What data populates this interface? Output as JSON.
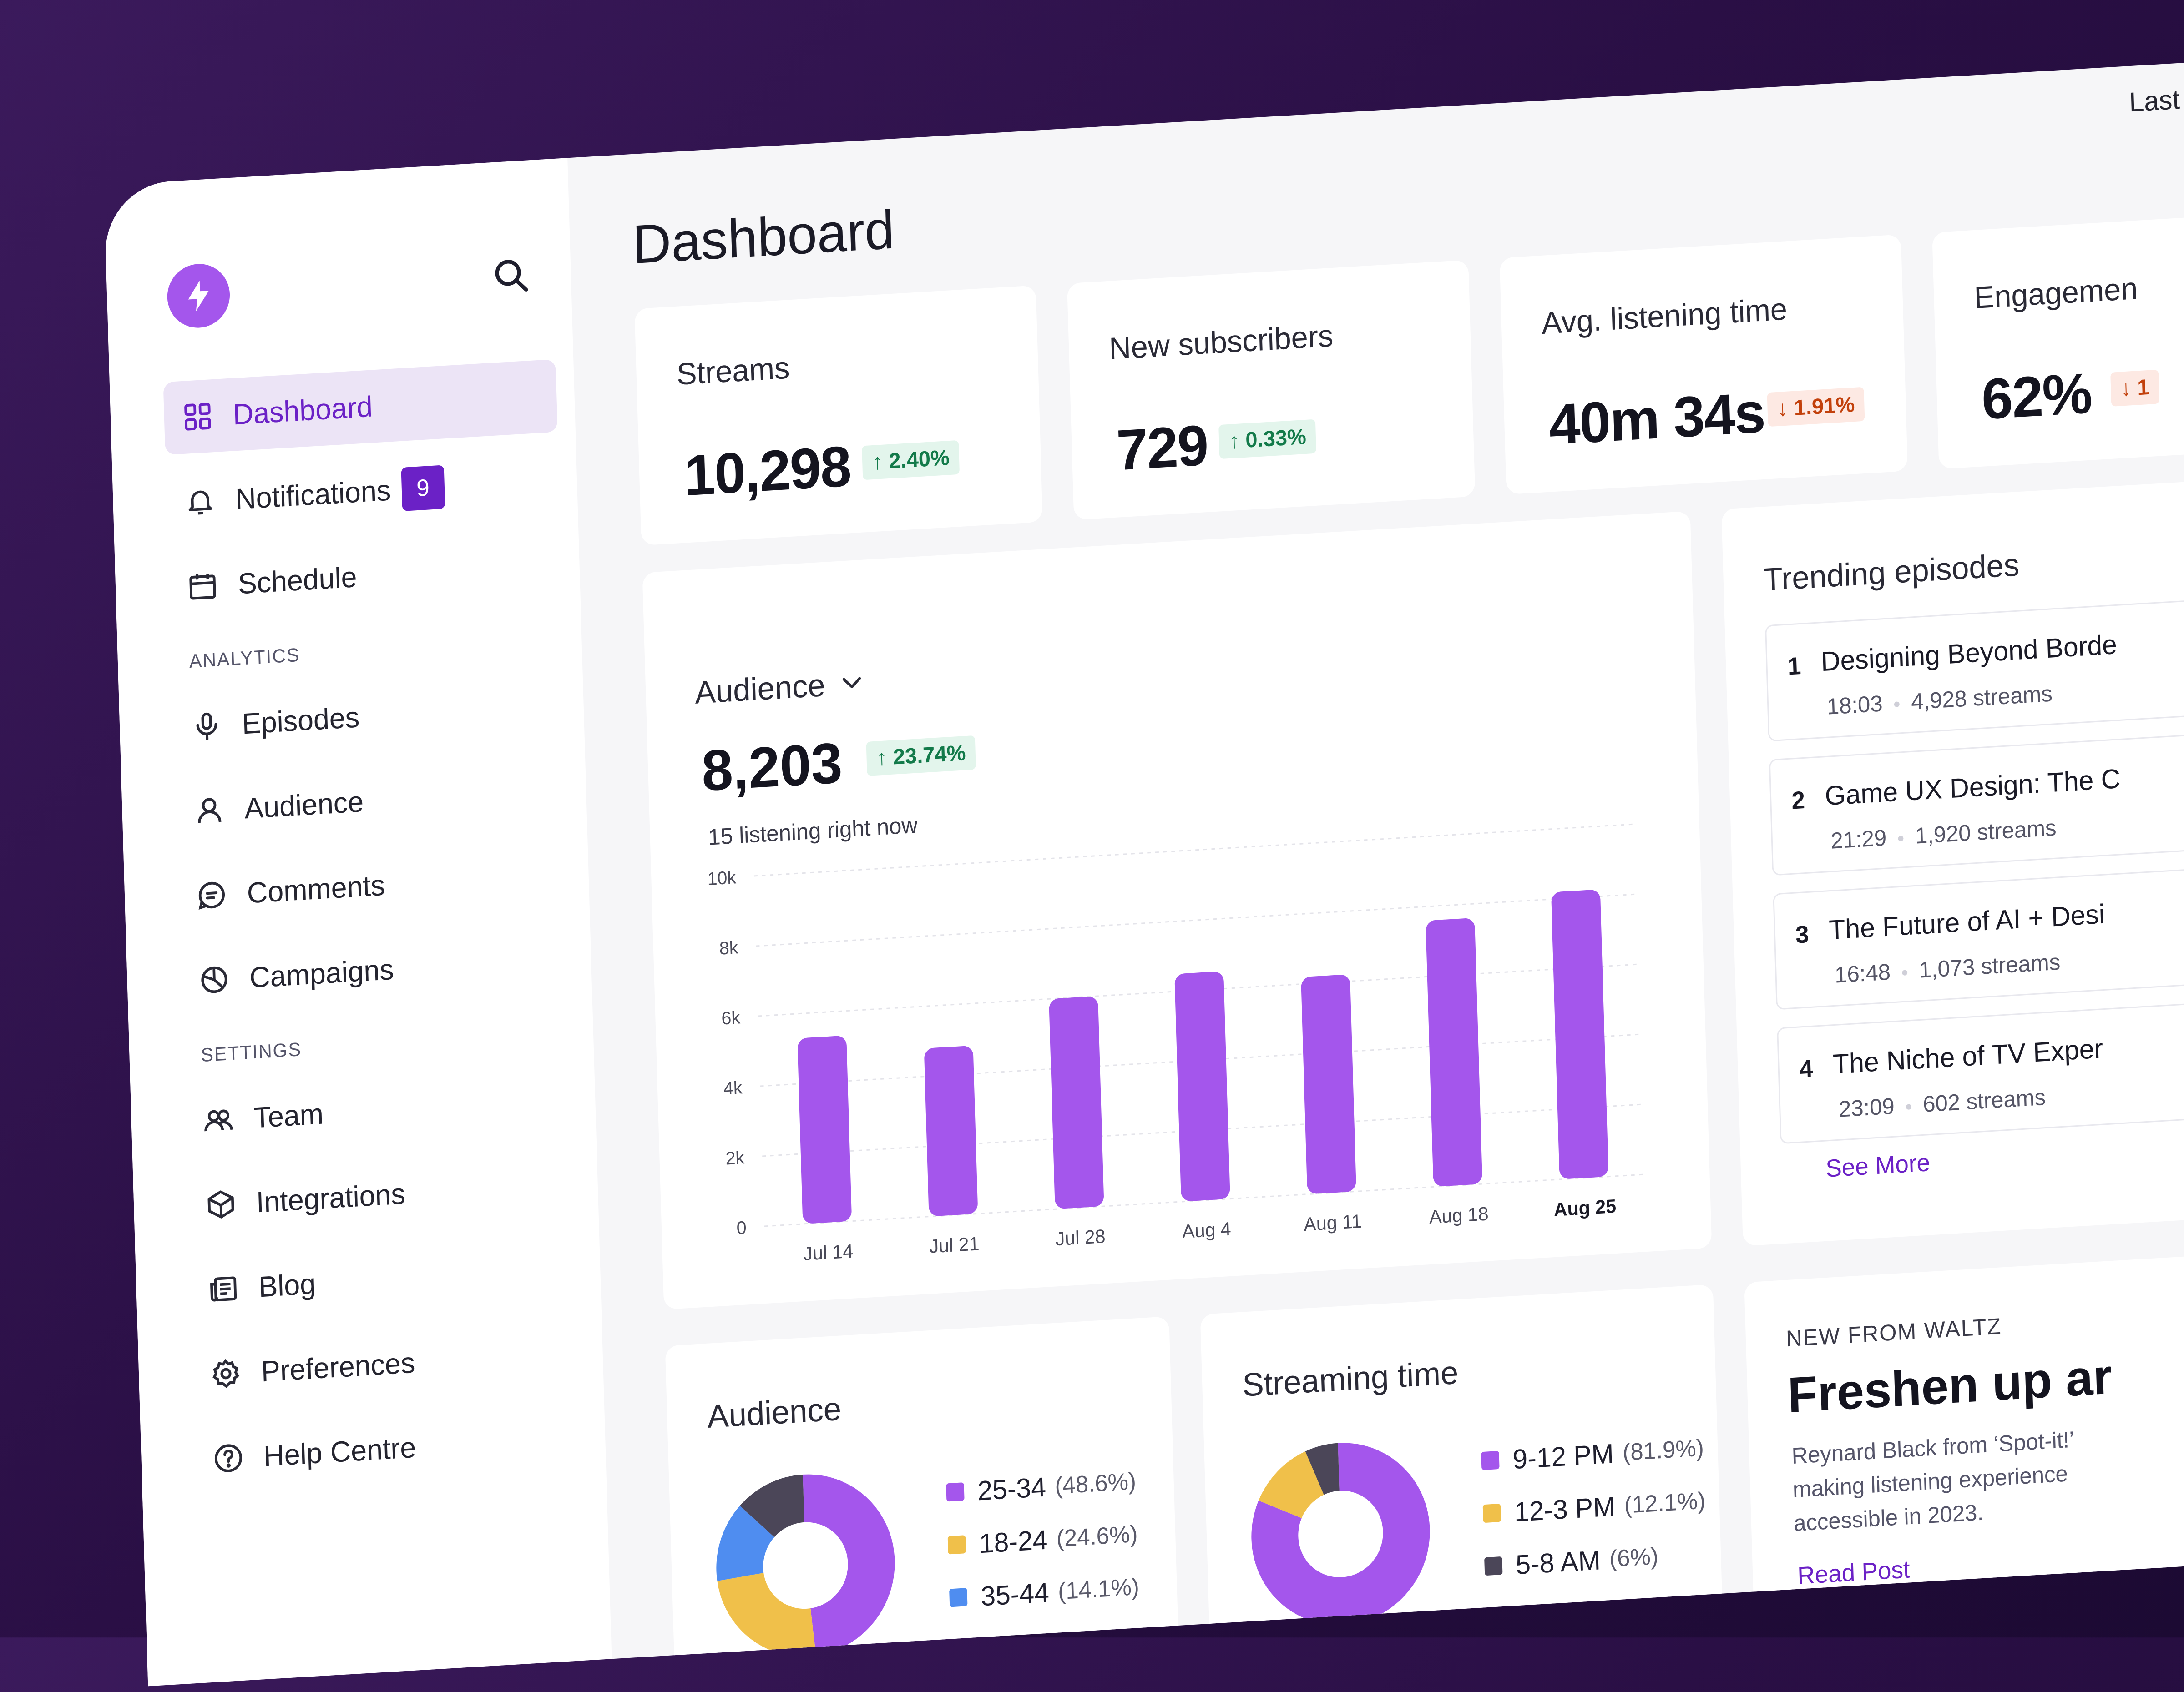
{
  "sidebar": {
    "items": [
      {
        "label": "Dashboard",
        "icon": "grid-icon",
        "active": true
      },
      {
        "label": "Notifications",
        "icon": "bell-icon",
        "badge": "9"
      },
      {
        "label": "Schedule",
        "icon": "calendar-icon"
      }
    ],
    "analytics_heading": "ANALYTICS",
    "analytics": [
      {
        "label": "Episodes",
        "icon": "microphone-icon"
      },
      {
        "label": "Audience",
        "icon": "user-icon"
      },
      {
        "label": "Comments",
        "icon": "message-icon"
      },
      {
        "label": "Campaigns",
        "icon": "pie-chart-icon"
      }
    ],
    "settings_heading": "SETTINGS",
    "settings": [
      {
        "label": "Team",
        "icon": "users-icon"
      },
      {
        "label": "Integrations",
        "icon": "cube-icon"
      },
      {
        "label": "Blog",
        "icon": "newspaper-icon"
      },
      {
        "label": "Preferences",
        "icon": "gear-icon"
      },
      {
        "label": "Help Centre",
        "icon": "help-circle-icon"
      }
    ]
  },
  "header": {
    "title": "Dashboard",
    "date_range": "Last"
  },
  "stats": [
    {
      "label": "Streams",
      "value": "10,298",
      "delta": "2.40%",
      "direction": "up"
    },
    {
      "label": "New subscribers",
      "value": "729",
      "delta": "0.33%",
      "direction": "up"
    },
    {
      "label": "Avg. listening time",
      "value": "40m 34s",
      "delta": "1.91%",
      "direction": "down"
    },
    {
      "label": "Engagemen",
      "value": "62%",
      "delta": "1",
      "direction": "down"
    }
  ],
  "audience": {
    "title": "Audience",
    "value": "8,203",
    "delta": "23.74%",
    "subtitle": "15 listening right now"
  },
  "chart_data": {
    "type": "bar",
    "categories": [
      "Jul 14",
      "Jul 21",
      "Jul 28",
      "Aug 4",
      "Aug 11",
      "Aug 18",
      "Aug 25"
    ],
    "values": [
      5300,
      4800,
      6000,
      6500,
      6200,
      7600,
      8200
    ],
    "yticks": [
      "0",
      "2k",
      "4k",
      "6k",
      "8k",
      "10k"
    ],
    "ylim": [
      0,
      10000
    ],
    "color": "#a456ec"
  },
  "trending": {
    "title": "Trending episodes",
    "episodes": [
      {
        "rank": "1",
        "title": "Designing Beyond Borde",
        "duration": "18:03",
        "streams": "4,928 streams"
      },
      {
        "rank": "2",
        "title": "Game UX Design: The C",
        "duration": "21:29",
        "streams": "1,920 streams"
      },
      {
        "rank": "3",
        "title": "The Future of AI + Desi",
        "duration": "16:48",
        "streams": "1,073 streams"
      },
      {
        "rank": "4",
        "title": "The Niche of TV Exper",
        "duration": "23:09",
        "streams": "602 streams"
      }
    ],
    "see_more": "See More"
  },
  "audience_breakdown": {
    "title": "Audience",
    "segments": [
      {
        "label": "25-34",
        "pct": "(48.6%)",
        "value": 48.6,
        "color": "#a456ec"
      },
      {
        "label": "18-24",
        "pct": "(24.6%)",
        "value": 24.6,
        "color": "#f0c04a"
      },
      {
        "label": "35-44",
        "pct": "(14.1%)",
        "value": 14.1,
        "color": "#4f8df0"
      },
      {
        "label": "",
        "pct": "",
        "value": 12.7,
        "color": "#4b4658"
      }
    ]
  },
  "streaming_time": {
    "title": "Streaming time",
    "segments": [
      {
        "label": "9-12 PM",
        "pct": "(81.9%)",
        "value": 81.9,
        "color": "#a456ec"
      },
      {
        "label": "12-3 PM",
        "pct": "(12.1%)",
        "value": 12.1,
        "color": "#f0c04a"
      },
      {
        "label": "5-8 AM",
        "pct": "(6%)",
        "value": 6,
        "color": "#4b4658"
      }
    ]
  },
  "news": {
    "eyebrow": "NEW FROM WALTZ",
    "title": "Freshen up ar",
    "body": "Reynard Black from ‘Spot-it!’ making listening experience accessible in 2023.",
    "cta": "Read Post"
  }
}
